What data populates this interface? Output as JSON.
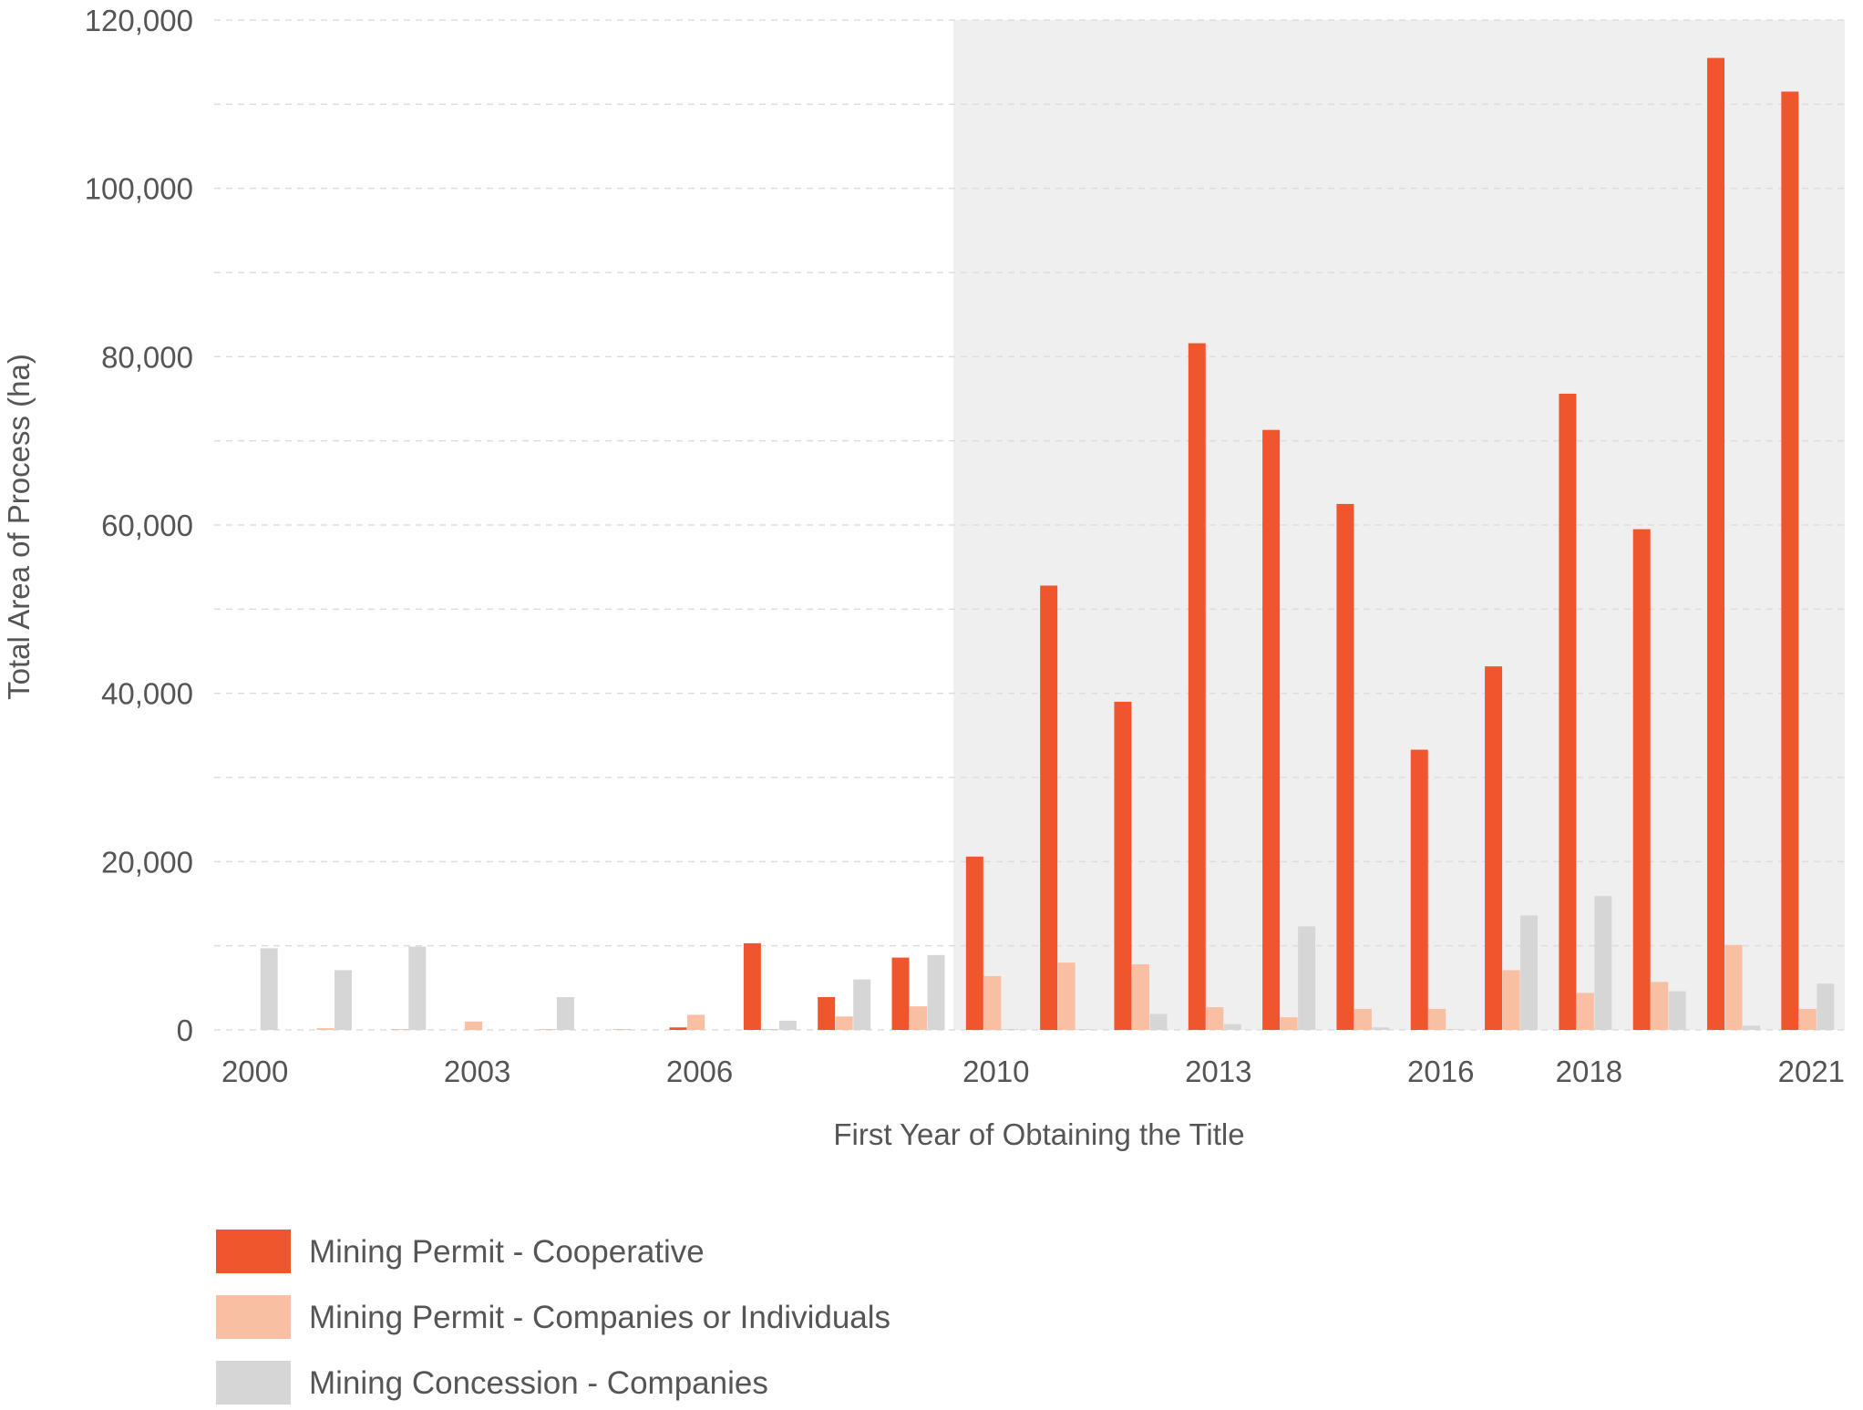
{
  "chart_data": {
    "type": "bar",
    "xlabel": "First Year of Obtaining the Title",
    "ylabel": "Total Area of Process (ha)",
    "ylim": [
      0,
      120000
    ],
    "y_ticks": [
      "0",
      "20,000",
      "40,000",
      "60,000",
      "80,000",
      "100,000",
      "120,000"
    ],
    "y_tick_values": [
      0,
      20000,
      40000,
      60000,
      80000,
      100000,
      120000
    ],
    "grid": "dashed horizontal",
    "shaded_region": {
      "from_year": 2010,
      "to_year": 2021,
      "color": "#efefef"
    },
    "x_tick_labels": [
      "2000",
      "2003",
      "2006",
      "2010",
      "2013",
      "2016",
      "2018",
      "2021"
    ],
    "categories": [
      2000,
      2001,
      2002,
      2003,
      2004,
      2005,
      2006,
      2007,
      2008,
      2009,
      2010,
      2011,
      2012,
      2013,
      2014,
      2015,
      2016,
      2017,
      2018,
      2019,
      2020,
      2021
    ],
    "legend_position": "bottom-left",
    "series": [
      {
        "name": "Mining Permit - Cooperative",
        "color": "#f0562d",
        "values": [
          0,
          0,
          0,
          0,
          0,
          0,
          300,
          10300,
          3900,
          8600,
          20600,
          52800,
          39000,
          81600,
          71300,
          62500,
          33300,
          43200,
          75600,
          59500,
          115500,
          111500
        ]
      },
      {
        "name": "Mining Permit - Companies or Individuals",
        "color": "#f9bfa2",
        "values": [
          0,
          200,
          100,
          1000,
          100,
          100,
          1800,
          100,
          1600,
          2800,
          6400,
          8000,
          7800,
          2700,
          1500,
          2500,
          2500,
          7100,
          4400,
          5700,
          10100,
          2500
        ]
      },
      {
        "name": "Mining Concession - Companies",
        "color": "#d6d6d6",
        "values": [
          9700,
          7100,
          9900,
          0,
          3900,
          0,
          0,
          1100,
          6000,
          8900,
          100,
          100,
          1900,
          700,
          12300,
          300,
          100,
          13600,
          15900,
          4600,
          500,
          5500
        ]
      }
    ]
  }
}
